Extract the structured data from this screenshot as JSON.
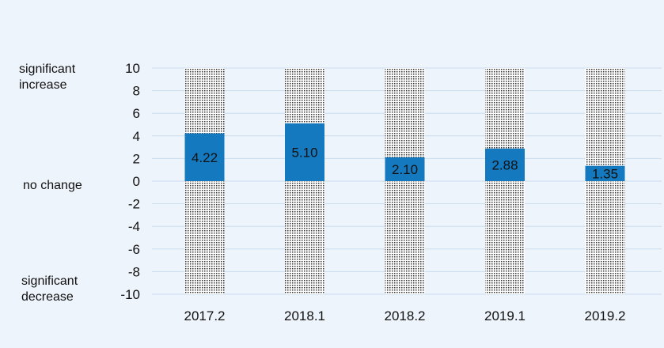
{
  "chart_data": {
    "type": "bar",
    "categories": [
      "2017.2",
      "2018.1",
      "2018.2",
      "2019.1",
      "2019.2"
    ],
    "values": [
      4.22,
      5.1,
      2.1,
      2.88,
      1.35
    ],
    "value_labels": [
      "4.22",
      "5.10",
      "2.10",
      "2.88",
      "1.35"
    ],
    "range_band": [
      -10,
      10
    ],
    "ylim": [
      -10,
      10
    ],
    "yticks": [
      10,
      8,
      6,
      4,
      2,
      0,
      -2,
      -4,
      -6,
      -8,
      -10
    ],
    "grid": true,
    "annotations": {
      "top": "significant\nincrease",
      "middle": "no change",
      "bottom": "significant\ndecrease"
    },
    "colors": {
      "bar": "#1479bf",
      "band_dots": "#333333",
      "grid": "#c9ddef",
      "background": "#eef4fb"
    }
  }
}
